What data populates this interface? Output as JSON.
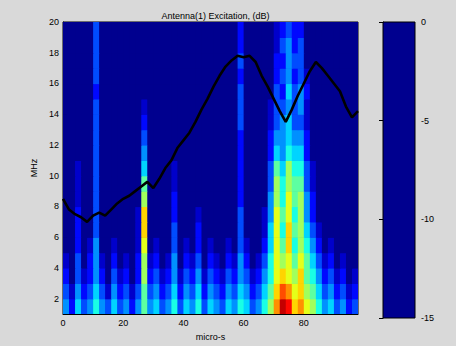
{
  "chart_data": {
    "type": "heatmap",
    "title": "Antenna(1) Excitation, (dB)",
    "xlabel": "micro-s",
    "ylabel": "MHz",
    "xlim": [
      0,
      98
    ],
    "xticks": [
      0,
      20,
      40,
      60,
      80
    ],
    "ylim": [
      1,
      20
    ],
    "yticks": [
      2,
      4,
      6,
      8,
      10,
      12,
      14,
      16,
      18,
      20
    ],
    "grid": false,
    "x_bins": [
      0,
      2,
      4,
      6,
      8,
      10,
      12,
      14,
      16,
      18,
      20,
      22,
      24,
      26,
      28,
      30,
      32,
      34,
      36,
      38,
      40,
      42,
      44,
      46,
      48,
      50,
      52,
      54,
      56,
      58,
      60,
      62,
      64,
      66,
      68,
      70,
      72,
      74,
      76,
      78,
      80,
      82,
      84,
      86,
      88,
      90,
      92,
      94,
      96,
      98
    ],
    "y_bins": [
      1,
      2,
      3,
      4,
      5,
      6,
      7,
      8,
      9,
      10,
      11,
      12,
      13,
      14,
      15,
      16,
      17,
      18,
      19,
      20
    ],
    "cells": [
      [
        -11,
        -13,
        -10,
        -12,
        -11,
        -9,
        -11,
        -12,
        -10,
        -12,
        -11,
        -13,
        -11,
        -8,
        -11,
        -10,
        -12,
        -11,
        -9,
        -12,
        -10,
        -11,
        -9,
        -12,
        -10,
        -11,
        -12,
        -10,
        -11,
        -9,
        -10,
        -12,
        -11,
        -9,
        -7,
        -4,
        -1,
        -2,
        -5,
        -4,
        -6,
        -7,
        -9,
        -11,
        -10,
        -12,
        -11,
        -13,
        -12
      ],
      [
        -12,
        -14,
        -11,
        -13,
        -12,
        -10,
        -12,
        -14,
        -11,
        -13,
        -12,
        -14,
        -12,
        -8,
        -12,
        -11,
        -13,
        -12,
        -10,
        -13,
        -11,
        -12,
        -10,
        -13,
        -11,
        -12,
        -13,
        -11,
        -12,
        -10,
        -11,
        -13,
        -12,
        -10,
        -8,
        -5,
        -3,
        -4,
        -6,
        -5,
        -7,
        -8,
        -10,
        -12,
        -11,
        -13,
        -12,
        -14,
        -13
      ],
      [
        -13,
        -15,
        -12,
        -14,
        -13,
        -11,
        -13,
        -15,
        -12,
        -14,
        -13,
        -15,
        -13,
        -7,
        -13,
        -12,
        -14,
        -13,
        -11,
        -14,
        -12,
        -13,
        -11,
        -14,
        -12,
        -13,
        -14,
        -12,
        -13,
        -11,
        -12,
        -14,
        -13,
        -11,
        -9,
        -6,
        -5,
        -6,
        -7,
        -5,
        -8,
        -9,
        -11,
        -13,
        -12,
        -14,
        -13,
        -15,
        -14
      ],
      [
        -14,
        -15,
        -12,
        -15,
        -13,
        -11,
        -14,
        -15,
        -13,
        -15,
        -14,
        -15,
        -13,
        -7,
        -14,
        -13,
        -15,
        -14,
        -11,
        -15,
        -13,
        -14,
        -12,
        -15,
        -13,
        -14,
        -15,
        -13,
        -14,
        -11,
        -13,
        -15,
        -14,
        -12,
        -9,
        -6,
        -7,
        -6,
        -8,
        -6,
        -8,
        -10,
        -12,
        -14,
        -13,
        -15,
        -14,
        -15,
        -15
      ],
      [
        -15,
        -15,
        -13,
        -15,
        -14,
        -11,
        -15,
        -15,
        -14,
        -15,
        -15,
        -15,
        -14,
        -6,
        -15,
        -14,
        -15,
        -15,
        -12,
        -15,
        -14,
        -15,
        -13,
        -15,
        -14,
        -15,
        -15,
        -14,
        -15,
        -12,
        -14,
        -15,
        -15,
        -13,
        -10,
        -6,
        -8,
        -5,
        -9,
        -7,
        -9,
        -11,
        -13,
        -15,
        -14,
        -15,
        -15,
        -15,
        -15
      ],
      [
        -15,
        -15,
        -13,
        -15,
        -15,
        -12,
        -15,
        -15,
        -15,
        -15,
        -15,
        -15,
        -14,
        -5,
        -15,
        -15,
        -15,
        -15,
        -12,
        -15,
        -15,
        -15,
        -13,
        -15,
        -15,
        -15,
        -15,
        -15,
        -15,
        -12,
        -15,
        -15,
        -15,
        -14,
        -10,
        -6,
        -9,
        -5,
        -8,
        -7,
        -10,
        -12,
        -14,
        -15,
        -15,
        -15,
        -15,
        -15,
        -15
      ],
      [
        -15,
        -15,
        -13,
        -15,
        -15,
        -12,
        -15,
        -15,
        -15,
        -15,
        -15,
        -15,
        -14,
        -5,
        -15,
        -15,
        -15,
        -15,
        -13,
        -15,
        -15,
        -15,
        -14,
        -15,
        -15,
        -15,
        -15,
        -15,
        -15,
        -12,
        -15,
        -15,
        -15,
        -14,
        -11,
        -6,
        -8,
        -6,
        -9,
        -7,
        -11,
        -13,
        -15,
        -15,
        -15,
        -15,
        -15,
        -15,
        -15
      ],
      [
        -15,
        -15,
        -14,
        -15,
        -15,
        -12,
        -15,
        -15,
        -15,
        -15,
        -15,
        -15,
        -15,
        -7,
        -15,
        -15,
        -15,
        -15,
        -13,
        -15,
        -15,
        -15,
        -15,
        -15,
        -15,
        -15,
        -15,
        -15,
        -15,
        -13,
        -15,
        -15,
        -15,
        -15,
        -11,
        -7,
        -9,
        -6,
        -8,
        -7,
        -11,
        -13,
        -15,
        -15,
        -15,
        -15,
        -15,
        -15,
        -15
      ],
      [
        -15,
        -15,
        -14,
        -15,
        -15,
        -12,
        -15,
        -15,
        -15,
        -15,
        -15,
        -15,
        -15,
        -8,
        -15,
        -15,
        -15,
        -15,
        -14,
        -15,
        -15,
        -15,
        -15,
        -15,
        -15,
        -15,
        -15,
        -15,
        -15,
        -13,
        -15,
        -15,
        -15,
        -15,
        -12,
        -7,
        -9,
        -7,
        -8,
        -8,
        -12,
        -14,
        -15,
        -15,
        -15,
        -15,
        -15,
        -15,
        -15
      ],
      [
        -15,
        -15,
        -14,
        -15,
        -15,
        -12,
        -15,
        -15,
        -15,
        -15,
        -15,
        -15,
        -15,
        -10,
        -15,
        -15,
        -15,
        -15,
        -14,
        -15,
        -15,
        -15,
        -15,
        -15,
        -15,
        -15,
        -15,
        -15,
        -15,
        -13,
        -15,
        -15,
        -15,
        -15,
        -12,
        -8,
        -10,
        -7,
        -9,
        -9,
        -12,
        -14,
        -15,
        -15,
        -15,
        -15,
        -15,
        -15,
        -15
      ],
      [
        -15,
        -15,
        -15,
        -15,
        -15,
        -12,
        -15,
        -15,
        -15,
        -15,
        -15,
        -15,
        -15,
        -11,
        -15,
        -15,
        -15,
        -15,
        -15,
        -15,
        -15,
        -15,
        -15,
        -15,
        -15,
        -15,
        -15,
        -15,
        -15,
        -13,
        -15,
        -15,
        -15,
        -15,
        -13,
        -10,
        -11,
        -9,
        -10,
        -10,
        -13,
        -15,
        -15,
        -15,
        -15,
        -15,
        -15,
        -15,
        -15
      ],
      [
        -15,
        -15,
        -15,
        -15,
        -15,
        -12,
        -15,
        -15,
        -15,
        -15,
        -15,
        -15,
        -15,
        -12,
        -15,
        -15,
        -15,
        -15,
        -15,
        -15,
        -15,
        -15,
        -15,
        -15,
        -15,
        -15,
        -15,
        -15,
        -15,
        -13,
        -15,
        -15,
        -15,
        -15,
        -13,
        -11,
        -11,
        -10,
        -11,
        -11,
        -13,
        -15,
        -15,
        -15,
        -15,
        -15,
        -15,
        -15,
        -15
      ],
      [
        -15,
        -15,
        -15,
        -15,
        -15,
        -12,
        -15,
        -15,
        -15,
        -15,
        -15,
        -15,
        -15,
        -13,
        -15,
        -15,
        -15,
        -15,
        -15,
        -15,
        -15,
        -15,
        -15,
        -15,
        -15,
        -15,
        -15,
        -15,
        -15,
        -12,
        -15,
        -15,
        -15,
        -15,
        -14,
        -12,
        -11,
        -10,
        -12,
        -12,
        -14,
        -15,
        -15,
        -15,
        -15,
        -15,
        -15,
        -15,
        -15
      ],
      [
        -15,
        -15,
        -15,
        -15,
        -15,
        -12,
        -15,
        -15,
        -15,
        -15,
        -15,
        -15,
        -15,
        -14,
        -15,
        -15,
        -15,
        -15,
        -15,
        -15,
        -15,
        -15,
        -15,
        -15,
        -15,
        -15,
        -15,
        -15,
        -15,
        -12,
        -15,
        -15,
        -15,
        -15,
        -14,
        -12,
        -12,
        -11,
        -12,
        -11,
        -14,
        -15,
        -15,
        -15,
        -15,
        -15,
        -15,
        -15,
        -15
      ],
      [
        -15,
        -15,
        -15,
        -15,
        -15,
        -13,
        -15,
        -15,
        -15,
        -15,
        -15,
        -15,
        -15,
        -15,
        -15,
        -15,
        -15,
        -15,
        -15,
        -15,
        -15,
        -15,
        -15,
        -15,
        -15,
        -15,
        -15,
        -15,
        -15,
        -12,
        -15,
        -15,
        -15,
        -15,
        -15,
        -12,
        -13,
        -10,
        -12,
        -11,
        -13,
        -15,
        -15,
        -15,
        -15,
        -15,
        -15,
        -15,
        -15
      ],
      [
        -15,
        -15,
        -15,
        -15,
        -15,
        -12,
        -15,
        -15,
        -15,
        -15,
        -15,
        -15,
        -15,
        -15,
        -15,
        -15,
        -15,
        -15,
        -15,
        -15,
        -15,
        -15,
        -15,
        -15,
        -15,
        -15,
        -15,
        -15,
        -15,
        -13,
        -15,
        -15,
        -15,
        -15,
        -15,
        -13,
        -12,
        -11,
        -13,
        -12,
        -14,
        -15,
        -15,
        -15,
        -15,
        -15,
        -15,
        -15,
        -15
      ],
      [
        -15,
        -15,
        -15,
        -15,
        -15,
        -12,
        -15,
        -15,
        -15,
        -15,
        -15,
        -15,
        -15,
        -15,
        -15,
        -15,
        -15,
        -15,
        -15,
        -15,
        -15,
        -15,
        -15,
        -15,
        -15,
        -15,
        -15,
        -15,
        -15,
        -12,
        -15,
        -15,
        -15,
        -15,
        -15,
        -13,
        -13,
        -11,
        -12,
        -12,
        -15,
        -15,
        -15,
        -15,
        -15,
        -15,
        -15,
        -15,
        -15
      ],
      [
        -15,
        -15,
        -15,
        -15,
        -15,
        -12,
        -15,
        -15,
        -15,
        -15,
        -15,
        -15,
        -15,
        -15,
        -15,
        -15,
        -15,
        -15,
        -15,
        -15,
        -15,
        -15,
        -15,
        -15,
        -15,
        -15,
        -15,
        -15,
        -15,
        -13,
        -15,
        -15,
        -15,
        -15,
        -15,
        -14,
        -12,
        -11,
        -13,
        -12,
        -15,
        -15,
        -15,
        -15,
        -15,
        -15,
        -15,
        -15,
        -15
      ],
      [
        -15,
        -15,
        -15,
        -15,
        -15,
        -12,
        -15,
        -15,
        -15,
        -15,
        -15,
        -15,
        -15,
        -15,
        -15,
        -15,
        -15,
        -15,
        -15,
        -15,
        -15,
        -15,
        -15,
        -15,
        -15,
        -15,
        -15,
        -15,
        -15,
        -13,
        -15,
        -15,
        -15,
        -15,
        -15,
        -14,
        -13,
        -12,
        -13,
        -13,
        -15,
        -15,
        -15,
        -15,
        -15,
        -15,
        -15,
        -15,
        -15
      ]
    ],
    "colorbar": {
      "range": [
        -15,
        0
      ],
      "ticks": [
        0,
        -5,
        -10,
        -15
      ]
    },
    "series": [
      {
        "type": "line",
        "color": "#000000",
        "x": [
          0,
          2,
          4,
          6,
          8,
          10,
          12,
          14,
          16,
          18,
          20,
          22,
          24,
          26,
          28,
          30,
          32,
          34,
          36,
          38,
          40,
          42,
          44,
          46,
          48,
          50,
          52,
          54,
          56,
          58,
          60,
          62,
          64,
          66,
          68,
          70,
          72,
          74,
          76,
          78,
          80,
          82,
          84,
          86,
          88,
          90,
          92,
          94,
          96,
          98
        ],
        "values": [
          8.5,
          7.8,
          7.5,
          7.3,
          7.0,
          7.4,
          7.6,
          7.4,
          7.8,
          8.2,
          8.5,
          8.7,
          9.0,
          9.3,
          9.6,
          9.2,
          9.8,
          10.5,
          11.0,
          11.8,
          12.3,
          12.8,
          13.5,
          14.3,
          15.0,
          15.8,
          16.5,
          17.1,
          17.5,
          17.8,
          17.7,
          17.8,
          17.4,
          16.5,
          15.8,
          15.0,
          14.2,
          13.5,
          14.3,
          15.2,
          16.0,
          16.8,
          17.4,
          17.0,
          16.5,
          16.0,
          15.5,
          14.5,
          13.8,
          14.2
        ]
      }
    ]
  }
}
